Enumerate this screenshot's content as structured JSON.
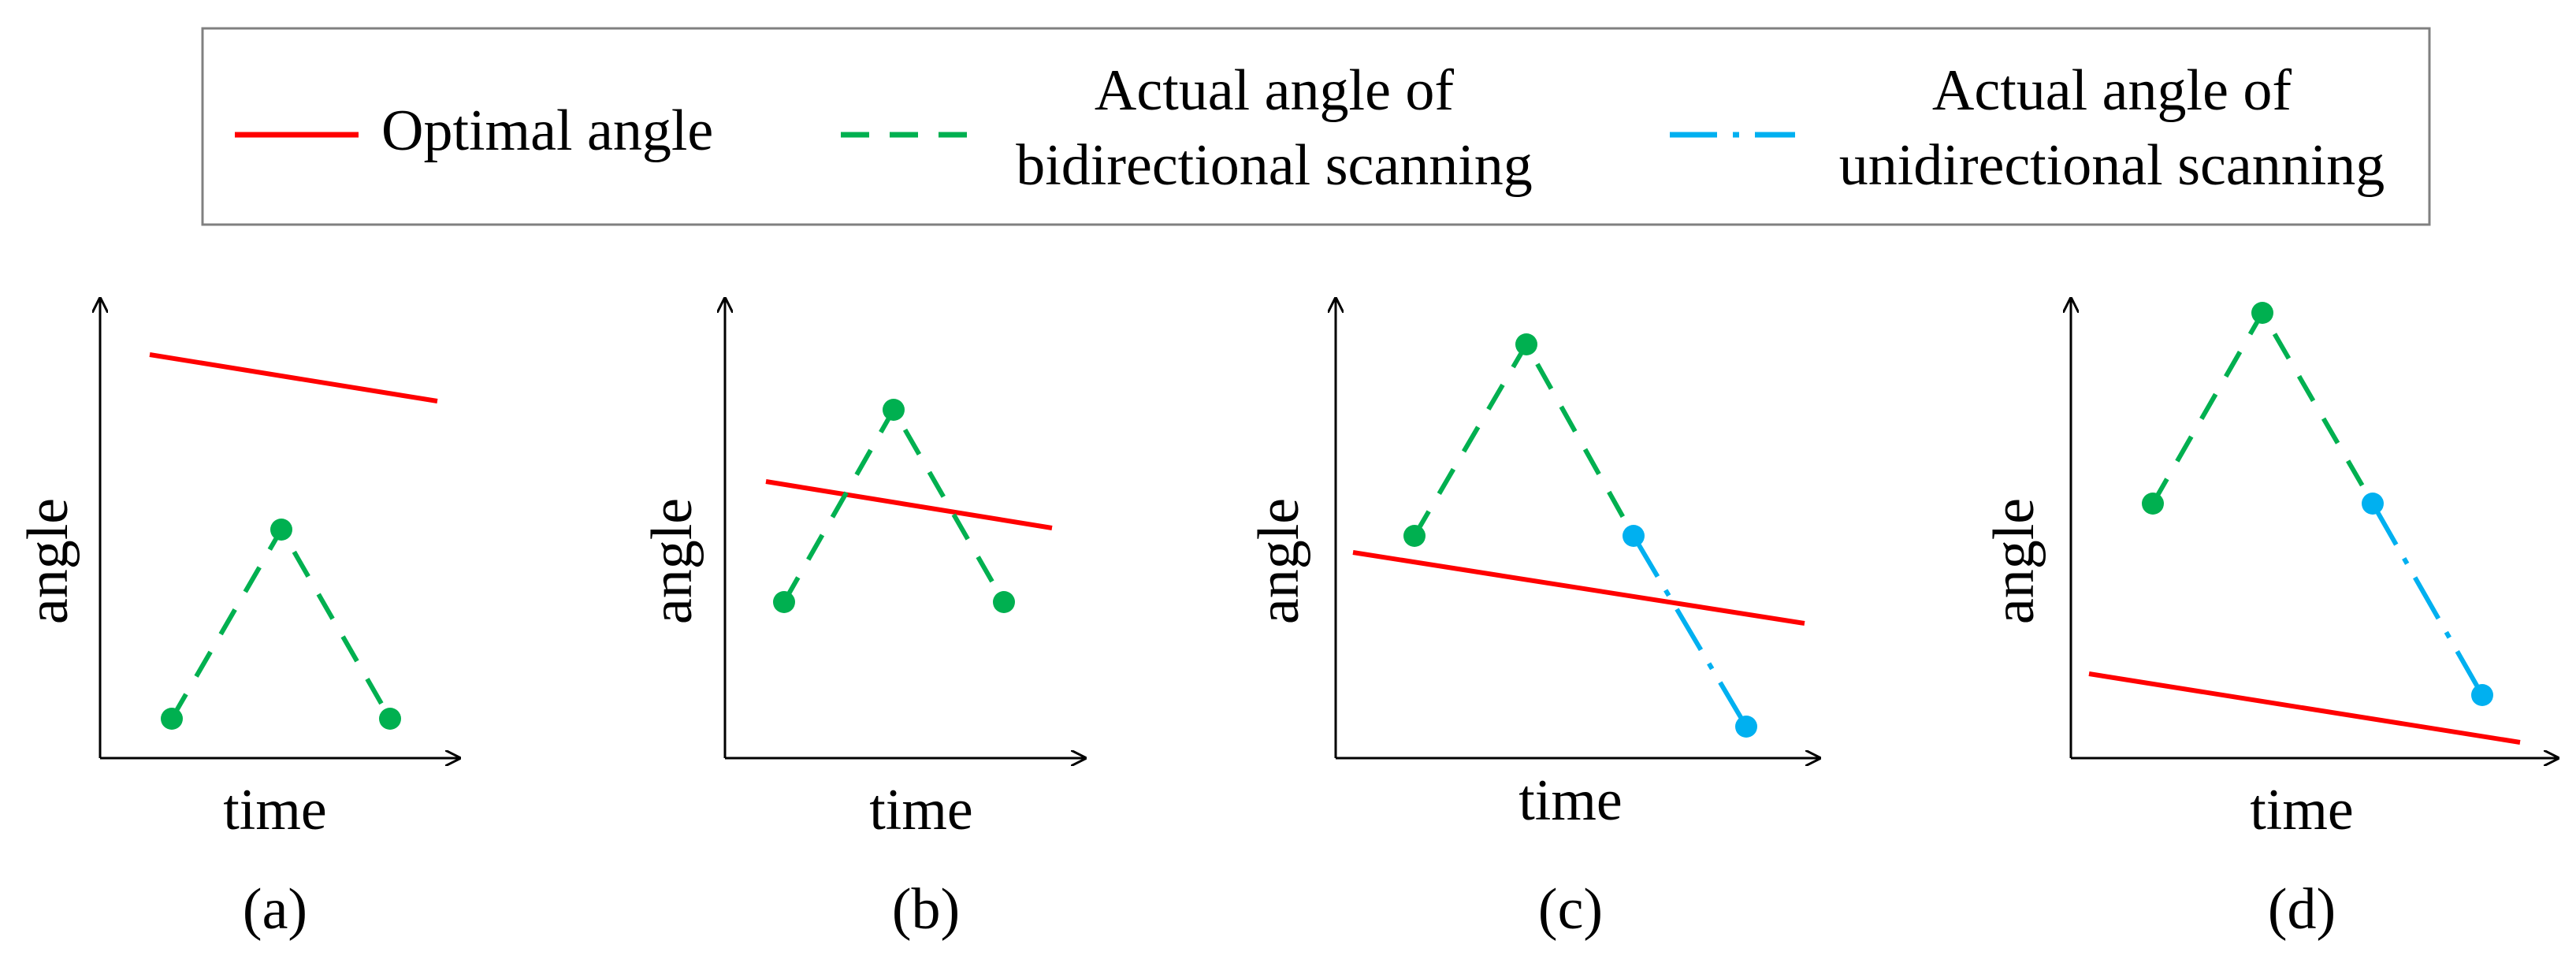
{
  "colors": {
    "optimal": "#ff0000",
    "bidirectional": "#00b050",
    "unidirectional": "#00b0f0",
    "axis": "#000000",
    "legend_border": "#808080"
  },
  "legend": {
    "optimal": "Optimal angle",
    "bidirectional_line1": "Actual angle of",
    "bidirectional_line2": "bidirectional scanning",
    "unidirectional_line1": "Actual angle of",
    "unidirectional_line2": "unidirectional scanning"
  },
  "panels": [
    {
      "id": "a",
      "caption": "(a)",
      "xlabel": "time",
      "ylabel": "angle"
    },
    {
      "id": "b",
      "caption": "(b)",
      "xlabel": "time",
      "ylabel": "angle"
    },
    {
      "id": "c",
      "caption": "(c)",
      "xlabel": "time",
      "ylabel": "angle"
    },
    {
      "id": "d",
      "caption": "(d)",
      "xlabel": "time",
      "ylabel": "angle"
    }
  ]
}
